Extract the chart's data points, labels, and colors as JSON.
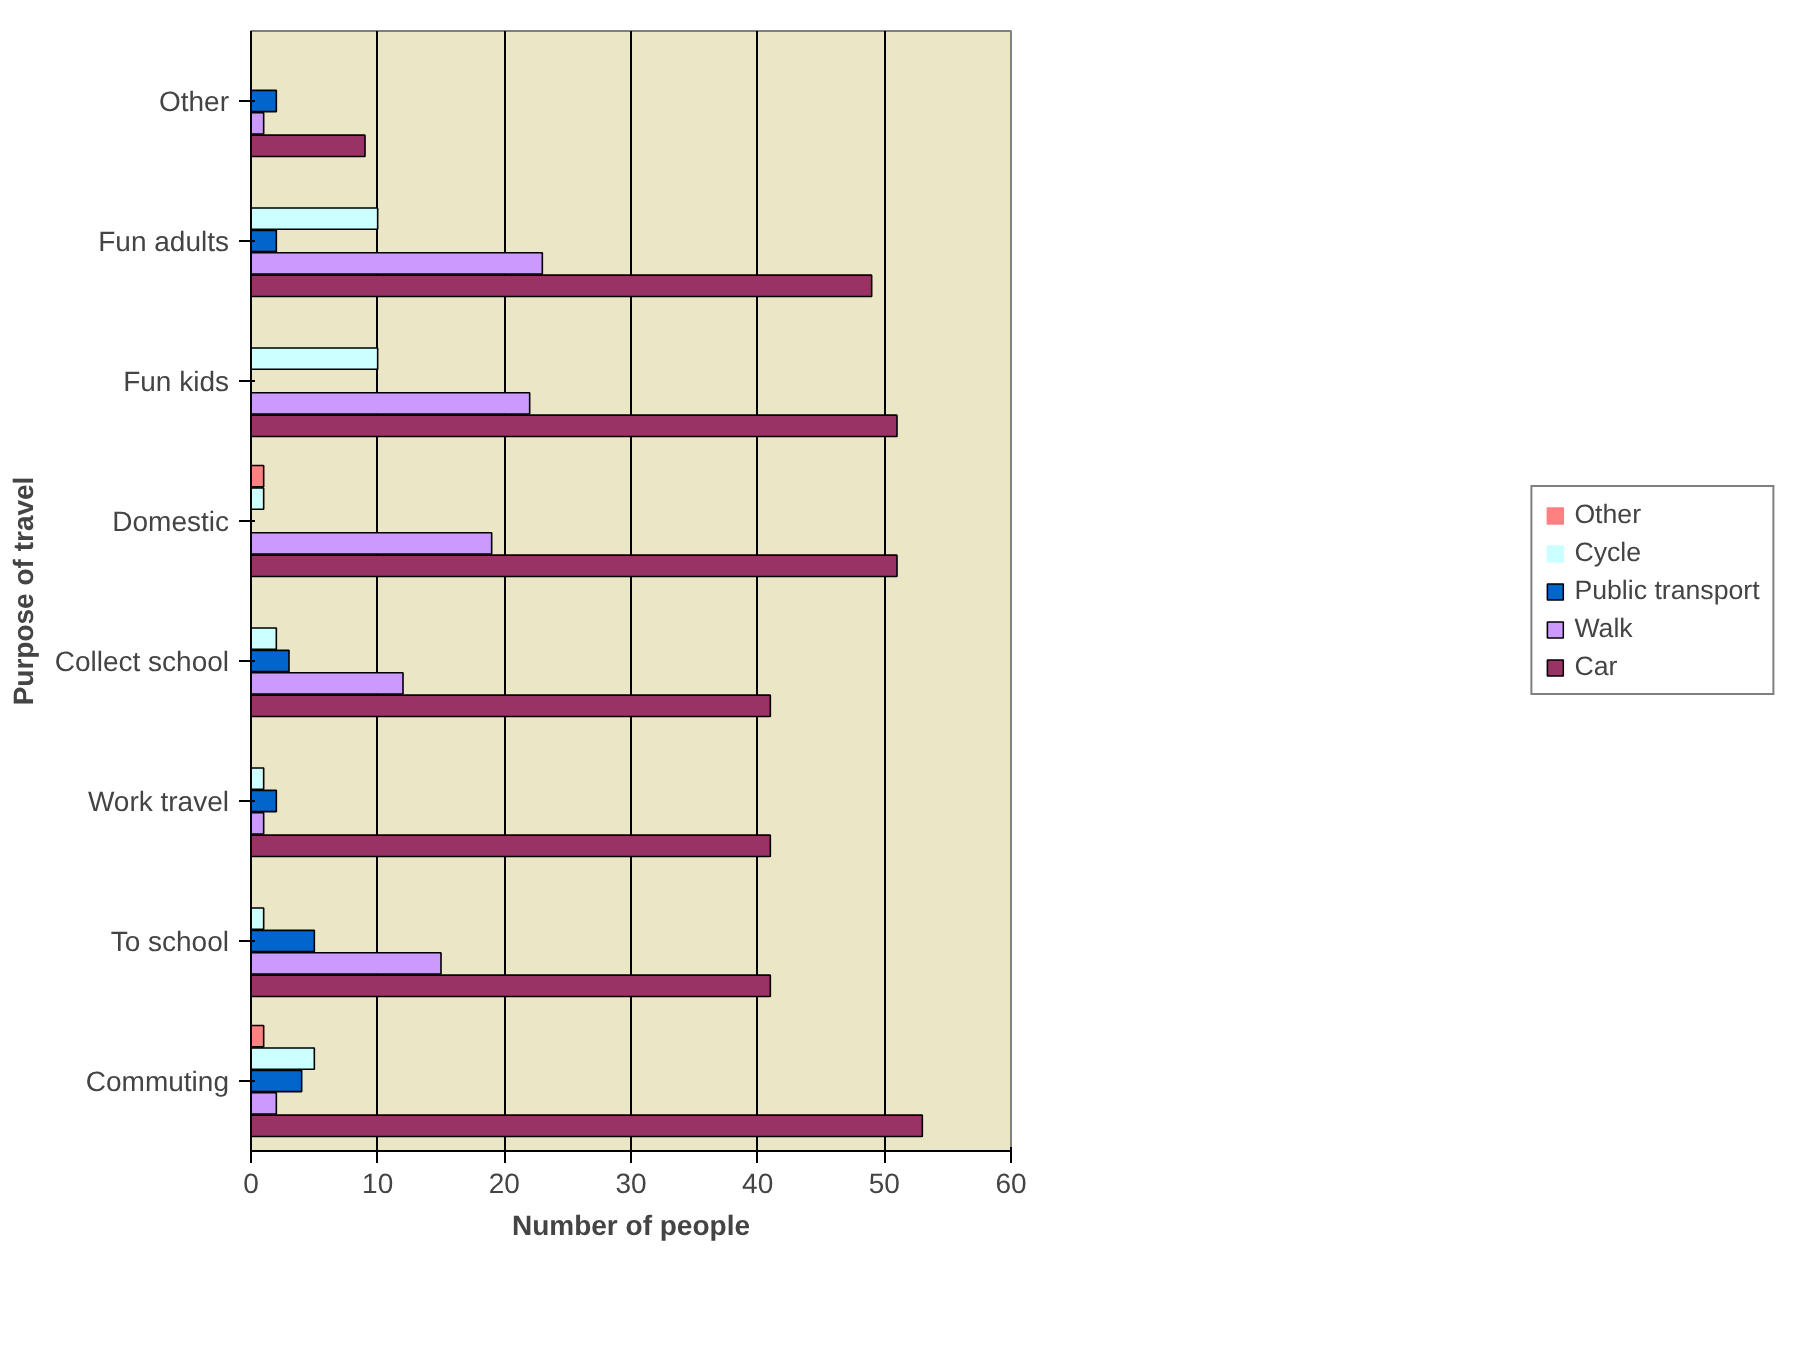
{
  "chart_data": {
    "type": "bar",
    "orientation": "horizontal",
    "xlabel": "Number of people",
    "ylabel": "Purpose of travel",
    "categories": [
      "Other",
      "Fun adults",
      "Fun kids",
      "Domestic",
      "Collect school",
      "Work travel",
      "To school",
      "Commuting"
    ],
    "series": [
      {
        "name": "Other",
        "color": "#ff8080",
        "values": [
          0,
          0,
          0,
          1,
          0,
          0,
          0,
          1
        ]
      },
      {
        "name": "Cycle",
        "color": "#ccffff",
        "values": [
          0,
          10,
          10,
          1,
          2,
          1,
          1,
          5
        ]
      },
      {
        "name": "Public transport",
        "color": "#0066cc",
        "values": [
          2,
          2,
          0,
          0,
          3,
          2,
          5,
          4
        ]
      },
      {
        "name": "Walk",
        "color": "#cc99ff",
        "values": [
          1,
          23,
          22,
          19,
          12,
          1,
          15,
          2
        ]
      },
      {
        "name": "Car",
        "color": "#993366",
        "values": [
          9,
          49,
          51,
          51,
          41,
          41,
          41,
          53
        ]
      }
    ],
    "xlim": [
      0,
      60
    ],
    "xticks": [
      0,
      10,
      20,
      30,
      40,
      50,
      60
    ],
    "grid": "x",
    "legend": "right"
  }
}
